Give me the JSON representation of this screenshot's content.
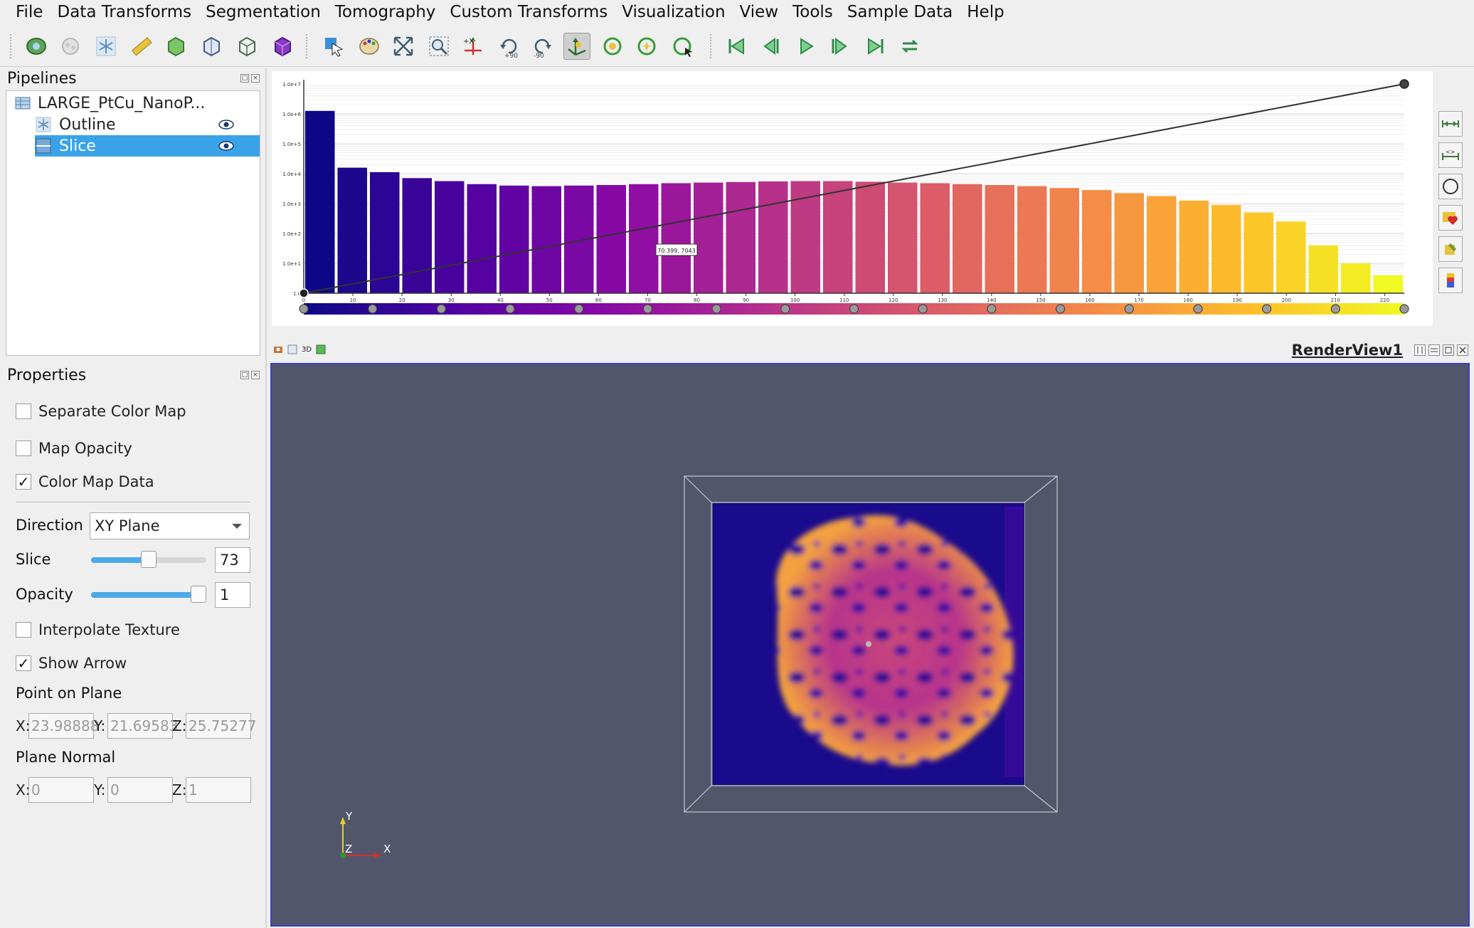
{
  "menu": [
    "File",
    "Data Transforms",
    "Segmentation",
    "Tomography",
    "Custom Transforms",
    "Visualization",
    "View",
    "Tools",
    "Sample Data",
    "Help"
  ],
  "toolbar": {
    "icons": [
      "open-dataset-icon",
      "reset-icon",
      "snowflake-icon",
      "ruler-icon",
      "green-box-icon",
      "outline-box-icon",
      "cube-icon",
      "purple-cube-icon",
      "interact-icon",
      "palette-icon",
      "reset-camera-icon",
      "zoom-icon",
      "axes-icon",
      "rotate-plus-90-icon",
      "rotate-minus-90-icon",
      "axes-view-icon",
      "reset-rotation-icon",
      "center-rotation-icon",
      "pick-center-icon",
      "first-frame-icon",
      "prev-frame-icon",
      "play-icon",
      "next-frame-icon",
      "last-frame-icon",
      "loop-icon"
    ]
  },
  "pipelines": {
    "title": "Pipelines",
    "items": [
      {
        "label": "LARGE_PtCu_NanoP...",
        "icon": "dataset-icon",
        "selected": false
      },
      {
        "label": "Outline",
        "icon": "snowflake-icon",
        "selected": false
      },
      {
        "label": "Slice",
        "icon": "slice-icon",
        "selected": true
      }
    ]
  },
  "properties": {
    "title": "Properties",
    "separate_color_map": {
      "label": "Separate Color Map",
      "checked": false
    },
    "map_opacity": {
      "label": "Map Opacity",
      "checked": false
    },
    "color_map_data": {
      "label": "Color Map Data",
      "checked": true
    },
    "direction": {
      "label": "Direction",
      "value": "XY Plane"
    },
    "slice": {
      "label": "Slice",
      "value": "73",
      "fraction": 0.5
    },
    "opacity": {
      "label": "Opacity",
      "value": "1",
      "fraction": 1.0
    },
    "interpolate_texture": {
      "label": "Interpolate Texture",
      "checked": false
    },
    "show_arrow": {
      "label": "Show Arrow",
      "checked": true
    },
    "point_on_plane": {
      "label": "Point on Plane",
      "x": "23.98888",
      "y": "21.69583",
      "z": "25.75277"
    },
    "plane_normal": {
      "label": "Plane Normal",
      "x": "0",
      "y": "0",
      "z": "1"
    },
    "coord_labels": {
      "x": "X:",
      "y": "Y:",
      "z": "Z:"
    }
  },
  "chart_data": {
    "type": "bar",
    "yscale": "log",
    "yticks": [
      "1.0",
      "1.0e+1",
      "1.0e+2",
      "1.0e+3",
      "1.0e+4",
      "1.0e+5",
      "1.0e+6",
      "1.0e+7"
    ],
    "xticks": [
      "0",
      "10",
      "20",
      "30",
      "40",
      "50",
      "60",
      "70",
      "80",
      "90",
      "100",
      "110",
      "120",
      "130",
      "140",
      "150",
      "160",
      "170",
      "180",
      "190",
      "200",
      "210",
      "220"
    ],
    "xlim": [
      0,
      224
    ],
    "ylim_log10": [
      0,
      7
    ],
    "bins_log10": [
      6.1,
      4.2,
      4.05,
      3.85,
      3.75,
      3.65,
      3.6,
      3.58,
      3.6,
      3.62,
      3.65,
      3.68,
      3.7,
      3.72,
      3.74,
      3.75,
      3.75,
      3.73,
      3.7,
      3.68,
      3.65,
      3.62,
      3.58,
      3.52,
      3.45,
      3.35,
      3.25,
      3.1,
      2.95,
      2.7,
      2.4,
      1.6,
      1.0,
      0.6
    ],
    "opacity_line": {
      "x": [
        0,
        224
      ],
      "y_fraction": [
        0,
        1
      ]
    },
    "tooltip": "70.399, 7043",
    "colormap": "plasma",
    "colormap_stops": [
      "#0d0887",
      "#5302a3",
      "#8b0aa5",
      "#b83289",
      "#db5c68",
      "#f48849",
      "#febd2a",
      "#f0f921"
    ],
    "node_count": 17
  },
  "render_view": {
    "title": "RenderView1",
    "mini_buttons": [
      "3D"
    ],
    "axes": {
      "x": "X",
      "y": "Y",
      "z": "Z"
    },
    "background": "#52566a"
  }
}
